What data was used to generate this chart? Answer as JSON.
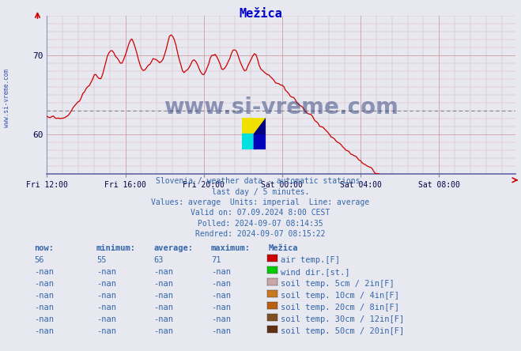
{
  "title": "Mežica",
  "title_color": "#0000cc",
  "bg_color": "#e8e8f0",
  "line_color": "#cc0000",
  "avg_value": 63,
  "y_min": 55,
  "y_max": 75,
  "y_ticks": [
    60,
    70
  ],
  "x_labels": [
    "Fri 12:00",
    "Fri 16:00",
    "Fri 20:00",
    "Sat 00:00",
    "Sat 04:00",
    "Sat 08:00"
  ],
  "watermark": "www.si-vreme.com",
  "watermark_color": "#1a2e6e",
  "left_label": "www.si-vreme.com",
  "text_color": "#3366aa",
  "info_lines": [
    "Slovenia / weather data - automatic stations.",
    "last day / 5 minutes.",
    "Values: average  Units: imperial  Line: average",
    "Valid on: 07.09.2024 8:00 CEST",
    "Polled: 2024-09-07 08:14:35",
    "Rendred: 2024-09-07 08:15:22"
  ],
  "table_headers": [
    "now:",
    "minimum:",
    "average:",
    "maximum:",
    "Mežica"
  ],
  "table_rows": [
    {
      "values": [
        "56",
        "55",
        "63",
        "71"
      ],
      "color": "#cc0000",
      "label": "air temp.[F]"
    },
    {
      "values": [
        "-nan",
        "-nan",
        "-nan",
        "-nan"
      ],
      "color": "#00cc00",
      "label": "wind dir.[st.]"
    },
    {
      "values": [
        "-nan",
        "-nan",
        "-nan",
        "-nan"
      ],
      "color": "#c8a8a8",
      "label": "soil temp. 5cm / 2in[F]"
    },
    {
      "values": [
        "-nan",
        "-nan",
        "-nan",
        "-nan"
      ],
      "color": "#c87820",
      "label": "soil temp. 10cm / 4in[F]"
    },
    {
      "values": [
        "-nan",
        "-nan",
        "-nan",
        "-nan"
      ],
      "color": "#b86010",
      "label": "soil temp. 20cm / 8in[F]"
    },
    {
      "values": [
        "-nan",
        "-nan",
        "-nan",
        "-nan"
      ],
      "color": "#805020",
      "label": "soil temp. 30cm / 12in[F]"
    },
    {
      "values": [
        "-nan",
        "-nan",
        "-nan",
        "-nan"
      ],
      "color": "#603010",
      "label": "soil temp. 50cm / 20in[F]"
    }
  ],
  "logo": {
    "yellow": "#f0e000",
    "cyan": "#00e0e0",
    "blue": "#0000bb",
    "navy": "#000080"
  },
  "n_points": 288
}
